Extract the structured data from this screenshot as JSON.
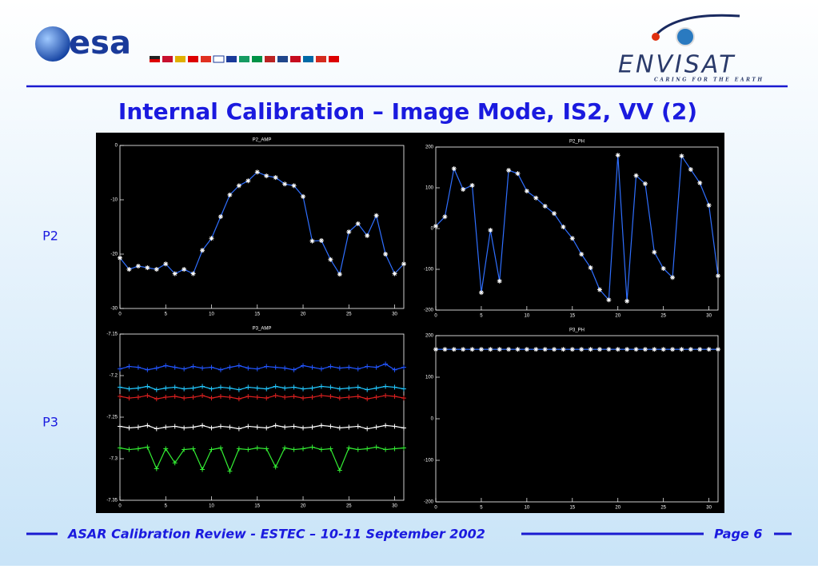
{
  "header": {
    "logo_left": "esa",
    "logo_right": "ENVISAT",
    "tagline": "CARING FOR THE EARTH"
  },
  "title": "Internal Calibration – Image Mode, IS2, VV (2)",
  "row_labels": [
    "P2",
    "P3"
  ],
  "footer": {
    "text": "ASAR Calibration Review - ESTEC – 10-11 September  2002",
    "page": "Page 6"
  },
  "chart_data": [
    {
      "type": "line",
      "title": "P2_AMP",
      "marker": "star",
      "marker_color": "#ffffff",
      "x": [
        0,
        1,
        2,
        3,
        4,
        5,
        6,
        7,
        8,
        9,
        10,
        11,
        12,
        13,
        14,
        15,
        16,
        17,
        18,
        19,
        20,
        21,
        22,
        23,
        24,
        25,
        26,
        27,
        28,
        29,
        30,
        31
      ],
      "series": [
        {
          "color": "#2f6fff",
          "values": [
            -20.7,
            -22.8,
            -22.2,
            -22.5,
            -22.8,
            -21.8,
            -23.6,
            -22.8,
            -23.6,
            -19.3,
            -17.1,
            -13.1,
            -9.1,
            -7.4,
            -6.5,
            -4.9,
            -5.6,
            -5.9,
            -7.1,
            -7.4,
            -9.4,
            -17.6,
            -17.5,
            -21,
            -23.7,
            -15.9,
            -14.4,
            -16.6,
            -12.9,
            -20,
            -23.6,
            -21.8
          ]
        }
      ],
      "xlim": [
        0,
        31
      ],
      "ylim": [
        -30,
        0
      ],
      "xticks": [
        0,
        5,
        10,
        15,
        20,
        25,
        30
      ],
      "yticks": [
        -30,
        -20,
        -10,
        0
      ]
    },
    {
      "type": "line",
      "title": "P2_PH",
      "marker": "star",
      "marker_color": "#ffffff",
      "x": [
        0,
        1,
        2,
        3,
        4,
        5,
        6,
        7,
        8,
        9,
        10,
        11,
        12,
        13,
        14,
        15,
        16,
        17,
        18,
        19,
        20,
        21,
        22,
        23,
        24,
        25,
        26,
        27,
        28,
        29,
        30,
        31
      ],
      "series": [
        {
          "color": "#2f6fff",
          "values": [
            6,
            29,
            147,
            96,
            106,
            -157,
            -4,
            -129,
            143,
            135,
            92,
            75,
            55,
            37,
            4,
            -24,
            -63,
            -96,
            -150,
            -175,
            180,
            -178,
            130,
            110,
            -58,
            -98,
            -120,
            178,
            145,
            112,
            57,
            -116
          ]
        }
      ],
      "xlim": [
        0,
        31
      ],
      "ylim": [
        -200,
        200
      ],
      "xticks": [
        0,
        5,
        10,
        15,
        20,
        25,
        30
      ],
      "yticks": [
        -200,
        -100,
        0,
        100,
        200
      ]
    },
    {
      "type": "line",
      "title": "P3_AMP",
      "marker": "plus",
      "marker_color": "series",
      "x": [
        0,
        1,
        2,
        3,
        4,
        5,
        6,
        7,
        8,
        9,
        10,
        11,
        12,
        13,
        14,
        15,
        16,
        17,
        18,
        19,
        20,
        21,
        22,
        23,
        24,
        25,
        26,
        27,
        28,
        29,
        30,
        31
      ],
      "series": [
        {
          "color": "#2255ff",
          "values": [
            -7.192,
            -7.189,
            -7.19,
            -7.193,
            -7.191,
            -7.188,
            -7.19,
            -7.192,
            -7.189,
            -7.191,
            -7.19,
            -7.193,
            -7.19,
            -7.188,
            -7.191,
            -7.192,
            -7.189,
            -7.19,
            -7.191,
            -7.193,
            -7.188,
            -7.19,
            -7.192,
            -7.189,
            -7.191,
            -7.19,
            -7.192,
            -7.189,
            -7.19,
            -7.186,
            -7.193,
            -7.19
          ]
        },
        {
          "color": "#22c8ff",
          "values": [
            -7.214,
            -7.216,
            -7.215,
            -7.213,
            -7.217,
            -7.215,
            -7.214,
            -7.216,
            -7.215,
            -7.213,
            -7.216,
            -7.214,
            -7.215,
            -7.217,
            -7.214,
            -7.215,
            -7.216,
            -7.213,
            -7.215,
            -7.214,
            -7.216,
            -7.215,
            -7.213,
            -7.214,
            -7.216,
            -7.215,
            -7.214,
            -7.217,
            -7.215,
            -7.213,
            -7.214,
            -7.216
          ]
        },
        {
          "color": "#e02020",
          "values": [
            -7.225,
            -7.227,
            -7.226,
            -7.224,
            -7.228,
            -7.226,
            -7.225,
            -7.227,
            -7.226,
            -7.224,
            -7.227,
            -7.225,
            -7.226,
            -7.228,
            -7.225,
            -7.226,
            -7.227,
            -7.224,
            -7.226,
            -7.225,
            -7.227,
            -7.226,
            -7.224,
            -7.225,
            -7.227,
            -7.226,
            -7.225,
            -7.228,
            -7.226,
            -7.224,
            -7.225,
            -7.227
          ]
        },
        {
          "color": "#ffffff",
          "values": [
            -7.261,
            -7.263,
            -7.262,
            -7.26,
            -7.264,
            -7.262,
            -7.261,
            -7.263,
            -7.262,
            -7.26,
            -7.263,
            -7.261,
            -7.262,
            -7.264,
            -7.261,
            -7.262,
            -7.263,
            -7.26,
            -7.262,
            -7.261,
            -7.263,
            -7.262,
            -7.26,
            -7.261,
            -7.263,
            -7.262,
            -7.261,
            -7.264,
            -7.262,
            -7.26,
            -7.261,
            -7.263
          ]
        },
        {
          "color": "#33ee33",
          "values": [
            -7.287,
            -7.289,
            -7.288,
            -7.286,
            -7.312,
            -7.288,
            -7.305,
            -7.289,
            -7.288,
            -7.313,
            -7.289,
            -7.287,
            -7.315,
            -7.288,
            -7.289,
            -7.287,
            -7.288,
            -7.31,
            -7.287,
            -7.289,
            -7.288,
            -7.286,
            -7.289,
            -7.288,
            -7.314,
            -7.287,
            -7.289,
            -7.288,
            -7.286,
            -7.289,
            -7.288,
            -7.287
          ]
        }
      ],
      "xlim": [
        0,
        31
      ],
      "ylim": [
        -7.35,
        -7.15
      ],
      "xticks": [
        0,
        5,
        10,
        15,
        20,
        25,
        30
      ],
      "yticks": [
        -7.35,
        -7.3,
        -7.25,
        -7.2,
        -7.15
      ]
    },
    {
      "type": "line",
      "title": "P3_PH",
      "marker": "star",
      "marker_color": "#ffffff",
      "x": [
        0,
        1,
        2,
        3,
        4,
        5,
        6,
        7,
        8,
        9,
        10,
        11,
        12,
        13,
        14,
        15,
        16,
        17,
        18,
        19,
        20,
        21,
        22,
        23,
        24,
        25,
        26,
        27,
        28,
        29,
        30,
        31
      ],
      "series": [
        {
          "color": "#2f6fff",
          "values": [
            167,
            167,
            167,
            167,
            167,
            167,
            167,
            167,
            167,
            167,
            167,
            167,
            167,
            167,
            167,
            167,
            167,
            167,
            167,
            167,
            167,
            167,
            167,
            167,
            167,
            167,
            167,
            167,
            167,
            167,
            167,
            167
          ]
        }
      ],
      "xlim": [
        0,
        31
      ],
      "ylim": [
        -200,
        200
      ],
      "xticks": [
        0,
        5,
        10,
        15,
        20,
        25,
        30
      ],
      "yticks": [
        -200,
        -100,
        0,
        100,
        200
      ]
    }
  ]
}
